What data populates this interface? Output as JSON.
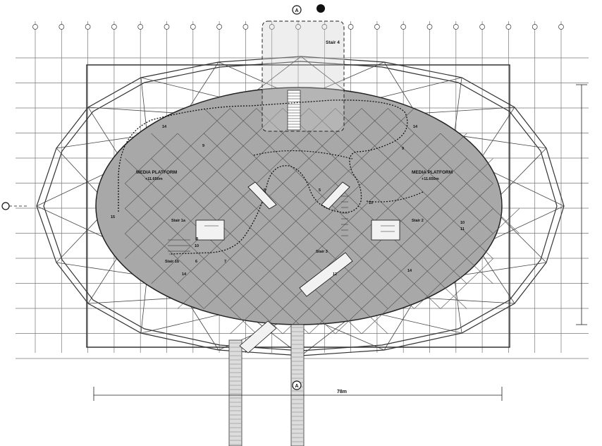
{
  "drawing": {
    "section_marker": "A",
    "labels": {
      "stair_4": "Stair 4",
      "media_platform_left": "MEDIA PLATFORM",
      "media_platform_left_level": "+11.650m",
      "media_platform_right": "MEDIA PLATFORM",
      "media_platform_right_level": "+11.650m",
      "stair_1a": "Stair 1a",
      "stair_1b": "Stair 1b",
      "stair_2": "Stair 2",
      "stair_3": "Stair 3",
      "dimension_width": "78m",
      "room_14_a": "14",
      "room_14_b": "14",
      "room_14_c": "14",
      "room_14_d": "14",
      "room_15": "15",
      "room_9_a": "9",
      "room_9_b": "9",
      "room_5_a": "5",
      "room_5_b": "5",
      "room_10_a": "10",
      "room_10_b": "10",
      "room_10_c": "10",
      "room_11": "11",
      "room_8": "8",
      "room_6": "6",
      "room_7": "7",
      "room_12": "12"
    }
  },
  "colors": {
    "deck_fill": "#a8a8a8",
    "line": "#222222",
    "grid": "#555555"
  }
}
